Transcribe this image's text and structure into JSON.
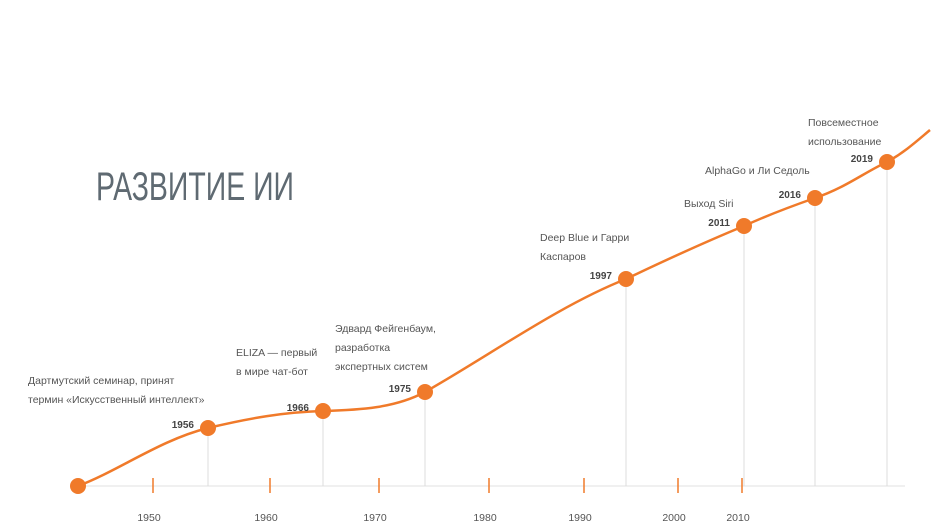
{
  "title": "РАЗВИТИЕ ИИ",
  "events": [
    {
      "year": "1956",
      "label": [
        "Дартмутский семинар, принят",
        "термин «Искусственный интеллект»"
      ]
    },
    {
      "year": "1966",
      "label": [
        "ELIZA — первый",
        "в мире чат-бот"
      ]
    },
    {
      "year": "1975",
      "label": [
        "Эдвард Фейгенбаум,",
        "разработка",
        "экспертных систем"
      ]
    },
    {
      "year": "1997",
      "label": [
        "Deep Blue и Гарри",
        "Каспаров"
      ]
    },
    {
      "year": "2011",
      "label": [
        "Выход Siri"
      ]
    },
    {
      "year": "2016",
      "label": [
        "AlphaGo и Ли Седоль"
      ]
    },
    {
      "year": "2019",
      "label": [
        "Повсеместное",
        "использование"
      ]
    }
  ],
  "axis": [
    "1950",
    "1960",
    "1970",
    "1980",
    "1990",
    "2000",
    "2010"
  ]
}
